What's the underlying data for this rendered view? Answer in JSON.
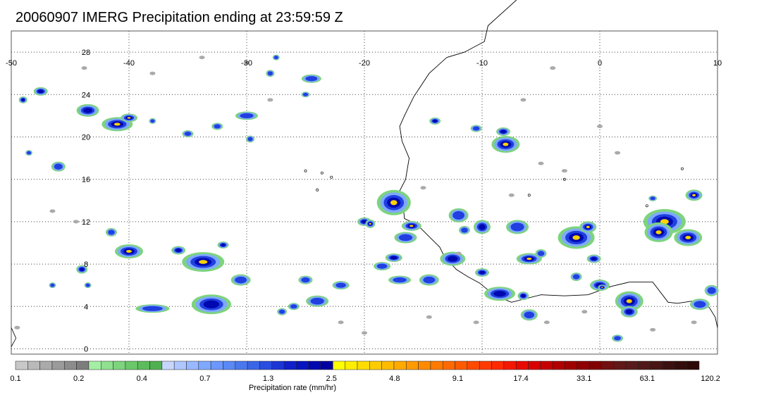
{
  "title": "20060907 IMERG Precipitation ending at 23:59:59 Z",
  "map": {
    "lon_labels": [
      "-50",
      "-40",
      "-30",
      "-20",
      "-10",
      "0",
      "10"
    ],
    "lat_labels": [
      "28",
      "24",
      "20",
      "16",
      "12",
      "8",
      "4",
      "0"
    ],
    "lon_range": [
      -50,
      10
    ],
    "lat_range": [
      -0.5,
      30
    ]
  },
  "colorbar": {
    "tick_labels": [
      "0.1",
      "0.2",
      "0.4",
      "0.7",
      "1.3",
      "2.5",
      "4.8",
      "9.1",
      "17.4",
      "33.1",
      "63.1",
      "120.2"
    ],
    "label": "Precipitation rate (mm/hr)",
    "colors": [
      "#c8c8c8",
      "#b9b9b9",
      "#aaaaaa",
      "#9b9b9b",
      "#8c8c8c",
      "#7d7d7d",
      "#a5eea5",
      "#8fe08f",
      "#7dd47d",
      "#6ac86a",
      "#5cbc5c",
      "#4fb04f",
      "#c6d6ff",
      "#afc6ff",
      "#98b8ff",
      "#7fa8ff",
      "#6b98ff",
      "#5a88f5",
      "#4a78ee",
      "#3a66e6",
      "#2a4ce0",
      "#1c36d6",
      "#1020cc",
      "#0814bf",
      "#0008b0",
      "#0000a0",
      "#ffff00",
      "#ffee00",
      "#ffdd00",
      "#ffcc00",
      "#ffbb00",
      "#ffaa00",
      "#ff9a00",
      "#ff8a00",
      "#ff7a00",
      "#ff6a00",
      "#ff5a00",
      "#ff4a00",
      "#ff3a00",
      "#ff2a00",
      "#f51800",
      "#e80a00",
      "#d80000",
      "#c40000",
      "#b00000",
      "#a00000",
      "#900000",
      "#800000",
      "#701010",
      "#601818",
      "#581a1a",
      "#501818",
      "#481414",
      "#3c1010",
      "#340c0c",
      "#2c0808"
    ]
  },
  "palette": {
    "gray": "#aaaaaa",
    "green": "#7dd47d",
    "light_blue": "#7fa8ff",
    "blue": "#2040e0",
    "dark_blue": "#0008b0",
    "yellow": "#ffd200",
    "orange": "#ff9a00",
    "red": "#e81a00"
  }
}
